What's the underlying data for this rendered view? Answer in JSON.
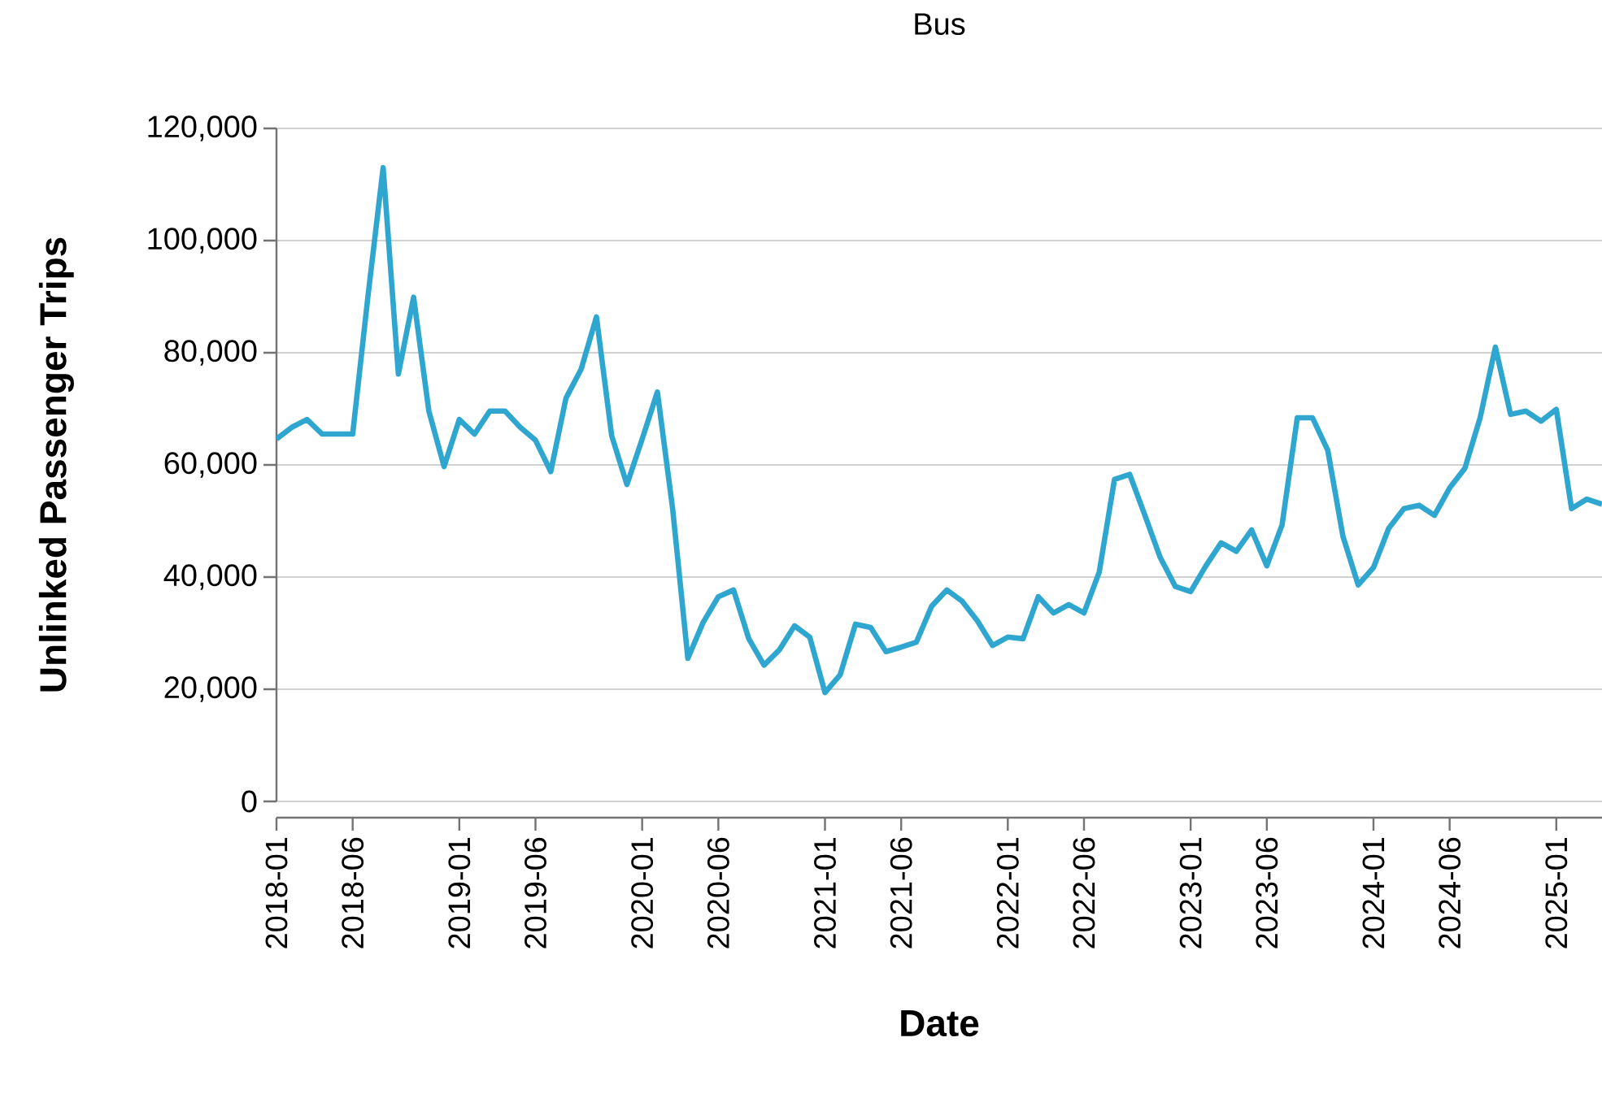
{
  "chart_data": {
    "type": "line",
    "title": "Bus",
    "xlabel": "Date",
    "ylabel": "Unlinked Passenger Trips",
    "x": [
      "2018-01",
      "2018-02",
      "2018-03",
      "2018-04",
      "2018-05",
      "2018-06",
      "2018-07",
      "2018-08",
      "2018-09",
      "2018-10",
      "2018-11",
      "2018-12",
      "2019-01",
      "2019-02",
      "2019-03",
      "2019-04",
      "2019-05",
      "2019-06",
      "2019-07",
      "2019-08",
      "2019-09",
      "2019-10",
      "2019-11",
      "2019-12",
      "2020-01",
      "2020-02",
      "2020-03",
      "2020-04",
      "2020-05",
      "2020-06",
      "2020-07",
      "2020-08",
      "2020-09",
      "2020-10",
      "2020-11",
      "2020-12",
      "2021-01",
      "2021-02",
      "2021-03",
      "2021-04",
      "2021-05",
      "2021-06",
      "2021-07",
      "2021-08",
      "2021-09",
      "2021-10",
      "2021-11",
      "2021-12",
      "2022-01",
      "2022-02",
      "2022-03",
      "2022-04",
      "2022-05",
      "2022-06",
      "2022-07",
      "2022-08",
      "2022-09",
      "2022-10",
      "2022-11",
      "2022-12",
      "2023-01",
      "2023-02",
      "2023-03",
      "2023-04",
      "2023-05",
      "2023-06",
      "2023-07",
      "2023-08",
      "2023-09",
      "2023-10",
      "2023-11",
      "2023-12",
      "2024-01",
      "2024-02",
      "2024-03",
      "2024-04",
      "2024-05",
      "2024-06",
      "2024-07",
      "2024-08",
      "2024-09",
      "2024-10",
      "2024-11",
      "2024-12",
      "2025-01",
      "2025-02",
      "2025-03",
      "2025-04"
    ],
    "series": [
      {
        "color": "#2ea6cf",
        "values": [
          64600,
          66700,
          68100,
          65500,
          65500,
          65500,
          90000,
          113000,
          76200,
          89900,
          69600,
          59700,
          68100,
          65500,
          69600,
          69600,
          66700,
          64400,
          58800,
          71900,
          77100,
          86400,
          65200,
          56500,
          64600,
          73000,
          52200,
          25500,
          31900,
          36500,
          37700,
          29000,
          24300,
          27000,
          31300,
          29300,
          19400,
          22600,
          31600,
          31000,
          26700,
          27500,
          28400,
          34800,
          37700,
          35700,
          32200,
          27800,
          29300,
          29000,
          36500,
          33600,
          35100,
          33600,
          40900,
          57400,
          58300,
          51000,
          43500,
          38300,
          37400,
          42000,
          46100,
          44600,
          48400,
          42000,
          49300,
          68400,
          68400,
          62600,
          47200,
          38600,
          41700,
          48700,
          52200,
          52800,
          51000,
          55900,
          59400,
          68400,
          81000,
          69000,
          69600,
          67800,
          69900,
          52200,
          53900,
          53000
        ]
      }
    ],
    "xlim": [
      "2018-01",
      "2025-04"
    ],
    "xticks": [
      "2018-01",
      "2018-06",
      "2019-01",
      "2019-06",
      "2020-01",
      "2020-06",
      "2021-01",
      "2021-06",
      "2022-01",
      "2022-06",
      "2023-01",
      "2023-06",
      "2024-01",
      "2024-06",
      "2025-01"
    ],
    "ylim": [
      0,
      120000
    ],
    "yticks": [
      0,
      {
        "value": 20000,
        "label": "20,000"
      },
      {
        "value": 40000,
        "label": "40,000"
      },
      {
        "value": 60000,
        "label": "60,000"
      },
      {
        "value": 80000,
        "label": "80,000"
      },
      {
        "value": 100000,
        "label": "100,000"
      },
      {
        "value": 120000,
        "label": "120,000"
      }
    ],
    "grid": "y"
  }
}
